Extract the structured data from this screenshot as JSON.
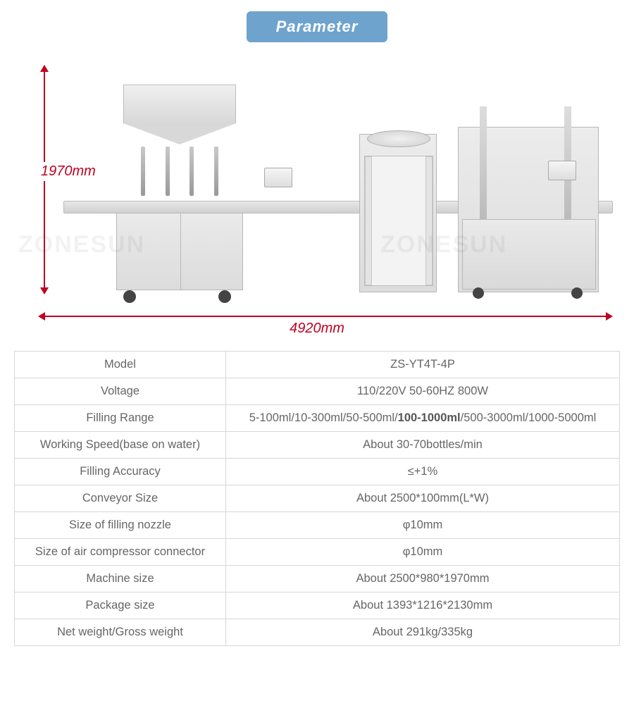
{
  "title": "Parameter",
  "diagram": {
    "height_label": "1970mm",
    "width_label": "4920mm",
    "watermark": "ZONESUN"
  },
  "table": {
    "rows": [
      {
        "key": "Model",
        "value": "ZS-YT4T-4P"
      },
      {
        "key": "Voltage",
        "value": "110/220V 50-60HZ 800W"
      },
      {
        "key": "Filling Range",
        "value_parts": [
          "5-100ml/10-300ml/50-500ml/",
          "100-1000ml",
          "/500-3000ml/1000-5000ml"
        ]
      },
      {
        "key": "Working Speed(base on water)",
        "value": "About 30-70bottles/min"
      },
      {
        "key": "Filling Accuracy",
        "value": "≤+1%"
      },
      {
        "key": "Conveyor Size",
        "value": "About 2500*100mm(L*W)"
      },
      {
        "key": "Size of filling nozzle",
        "value": "φ10mm"
      },
      {
        "key": "Size of air compressor connector",
        "value": "φ10mm"
      },
      {
        "key": "Machine size",
        "value": "About 2500*980*1970mm"
      },
      {
        "key": "Package size",
        "value": "About 1393*1216*2130mm"
      },
      {
        "key": "Net weight/Gross weight",
        "value": "About 291kg/335kg"
      }
    ]
  }
}
